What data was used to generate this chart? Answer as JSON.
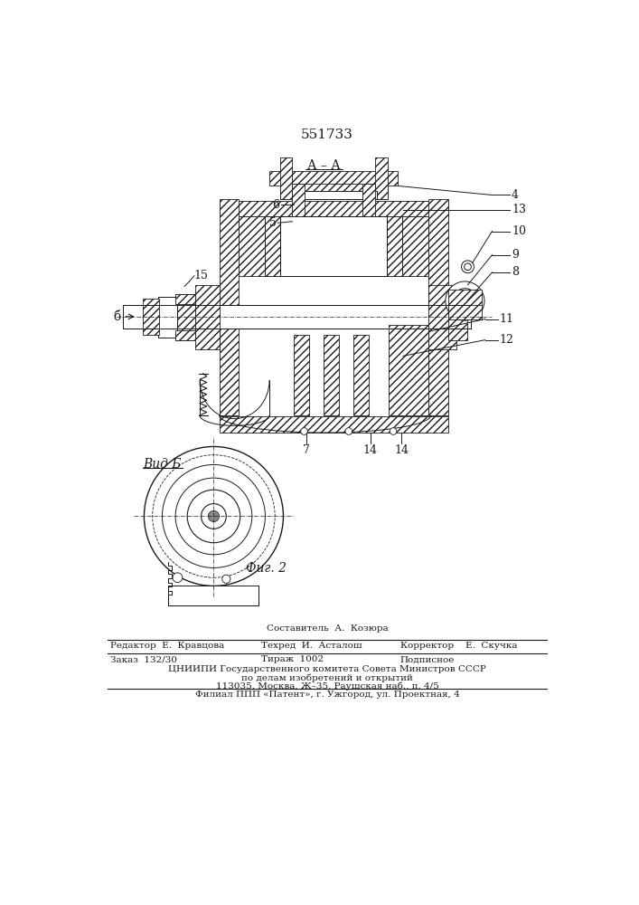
{
  "patent_number": "551733",
  "fig_label_top": "А – А",
  "fig_label_bottom": "Фиг. 2",
  "vid_label": "Вид Б",
  "arrow_label": "б",
  "footer": {
    "sostavitel": "Составитель  А.  Козюра",
    "redaktor": "Редактор  Е.  Кравцова",
    "tehred": "Техред  И.  Асталош",
    "korrektor": "Корректор    Е.  Скучка",
    "zakaz": "Заказ  132/30",
    "tirazh": "Тираж  1002",
    "podpisnoe": "Подписное",
    "cniipI": "ЦНИИПИ Государственного комитета Совета Министров СССР",
    "poDelam": "по делам изобретений и открытий",
    "address": "113035, Москва, Ж–35, Раушская наб., п. 4/5",
    "filial": "Филиал ППП «Патент», г. Ужгород, ул. Проектная, 4"
  },
  "bg_color": "#ffffff",
  "line_color": "#1a1a1a"
}
